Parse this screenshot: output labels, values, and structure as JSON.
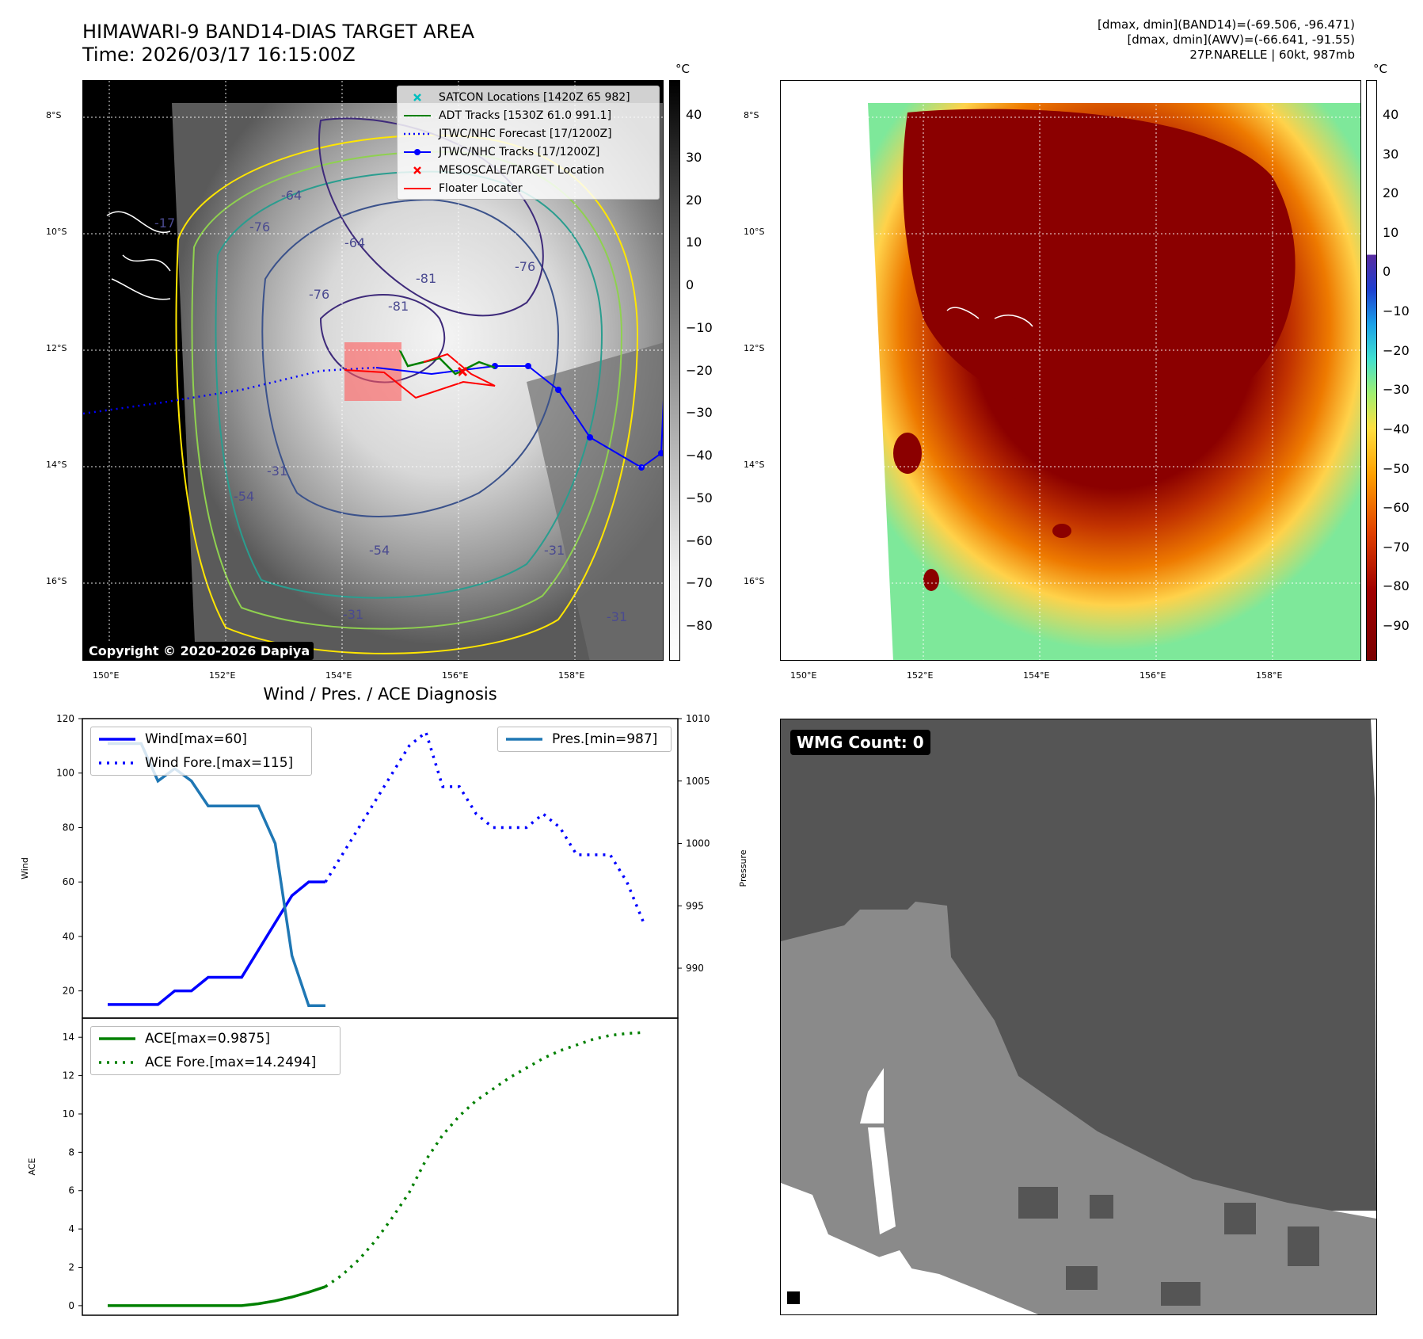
{
  "header": {
    "title_line1": "HIMAWARI-9 BAND14-DIAS TARGET AREA",
    "title_line2": "Time: 2026/03/17 16:15:00Z",
    "info_line1": "[dmax, dmin](BAND14)=(-69.506, -96.471)",
    "info_line2": "[dmax, dmin](AWV)=(-66.641, -91.55)",
    "info_line3": "27P.NARELLE | 60kt, 987mb"
  },
  "map_axes": {
    "lat_labels": [
      "8°S",
      "10°S",
      "12°S",
      "14°S",
      "16°S"
    ],
    "lon_labels": [
      "150°E",
      "152°E",
      "154°E",
      "156°E",
      "158°E"
    ]
  },
  "ir_panel": {
    "copyright": "Copyright © 2020-2026 Dapiya",
    "colorbar_unit": "°C",
    "colorbar_ticks": [
      "40",
      "30",
      "20",
      "10",
      "0",
      "−10",
      "−20",
      "−30",
      "−40",
      "−50",
      "−60",
      "−70",
      "−80"
    ],
    "contour_labels": [
      "-64",
      "-76",
      "-64",
      "-81",
      "-76",
      "-81",
      "-76",
      "-54",
      "-31",
      "-54",
      "-31",
      "-31",
      "-31",
      "-17"
    ],
    "legend": [
      {
        "label": "SATCON Locations [1420Z 65 982]",
        "color": "#00bfbf",
        "marker": "x"
      },
      {
        "label": "ADT Tracks [1530Z 61.0 991.1]",
        "color": "#008000",
        "marker": "line"
      },
      {
        "label": "JTWC/NHC Forecast [17/1200Z]",
        "color": "#0000ff",
        "marker": "dotted"
      },
      {
        "label": "JTWC/NHC Tracks [17/1200Z]",
        "color": "#0000ff",
        "marker": "line-dot"
      },
      {
        "label": "MESOSCALE/TARGET Location",
        "color": "#ff0000",
        "marker": "x"
      },
      {
        "label": "Floater Locater",
        "color": "#ff0000",
        "marker": "line"
      }
    ]
  },
  "awv_panel": {
    "colorbar_unit": "°C",
    "colorbar_ticks": [
      "40",
      "30",
      "20",
      "10",
      "0",
      "−10",
      "−20",
      "−30",
      "−40",
      "−50",
      "−60",
      "−70",
      "−80",
      "−90"
    ]
  },
  "wmg_panel": {
    "badge": "WMG Count: 0"
  },
  "chart_data": [
    {
      "type": "line",
      "title": "Wind / Pres. / ACE Diagnosis",
      "ylabel": "Wind",
      "ylabel2": "Pressure",
      "ylim": [
        10,
        120
      ],
      "ylim2": [
        986,
        1010
      ],
      "yticks": [
        "120",
        "100",
        "80",
        "60",
        "40",
        "20"
      ],
      "yticks2": [
        "1010",
        "1005",
        "1000",
        "995",
        "990"
      ],
      "series": [
        {
          "name": "Wind[max=60]",
          "color": "#0000ff",
          "style": "solid",
          "axis": "left",
          "x": [
            0,
            1,
            2,
            3,
            4,
            5,
            6,
            7,
            8,
            9,
            10,
            11,
            12,
            13
          ],
          "values": [
            15,
            15,
            15,
            15,
            20,
            20,
            25,
            25,
            25,
            35,
            45,
            55,
            60,
            60
          ]
        },
        {
          "name": "Wind Fore.[max=115]",
          "color": "#0000ff",
          "style": "dotted",
          "axis": "left",
          "x": [
            13,
            14,
            15,
            16,
            17,
            18,
            19,
            20,
            21,
            22,
            23,
            24,
            25,
            26,
            27,
            28,
            29,
            30,
            31,
            32
          ],
          "values": [
            60,
            70,
            80,
            90,
            100,
            110,
            115,
            95,
            95,
            85,
            80,
            80,
            80,
            85,
            80,
            70,
            70,
            70,
            60,
            45
          ]
        },
        {
          "name": "Pres.[min=987]",
          "color": "#1f77b4",
          "style": "solid",
          "axis": "right",
          "x": [
            0,
            1,
            2,
            3,
            4,
            5,
            6,
            7,
            8,
            9,
            10,
            11,
            12,
            13
          ],
          "values": [
            1008,
            1008,
            1008,
            1005,
            1006,
            1005,
            1003,
            1003,
            1003,
            1003,
            1000,
            991,
            987,
            987
          ]
        }
      ]
    },
    {
      "type": "line",
      "ylabel": "ACE",
      "ylim": [
        -0.5,
        15
      ],
      "yticks": [
        "14",
        "12",
        "10",
        "8",
        "6",
        "4",
        "2",
        "0"
      ],
      "series": [
        {
          "name": "ACE[max=0.9875]",
          "color": "#008000",
          "style": "solid",
          "x": [
            0,
            1,
            2,
            3,
            4,
            5,
            6,
            7,
            8,
            9,
            10,
            11,
            12,
            13
          ],
          "values": [
            0,
            0,
            0,
            0,
            0,
            0,
            0,
            0,
            0,
            0.1,
            0.25,
            0.45,
            0.7,
            0.99
          ]
        },
        {
          "name": "ACE Fore.[max=14.2494]",
          "color": "#008000",
          "style": "dotted",
          "x": [
            13,
            14,
            15,
            16,
            17,
            18,
            19,
            20,
            21,
            22,
            23,
            24,
            25,
            26,
            27,
            28,
            29,
            30,
            31,
            32
          ],
          "values": [
            0.99,
            1.6,
            2.4,
            3.4,
            4.6,
            5.9,
            7.6,
            8.9,
            9.9,
            10.7,
            11.3,
            11.9,
            12.4,
            12.9,
            13.3,
            13.6,
            13.9,
            14.1,
            14.2,
            14.25
          ]
        }
      ]
    }
  ]
}
